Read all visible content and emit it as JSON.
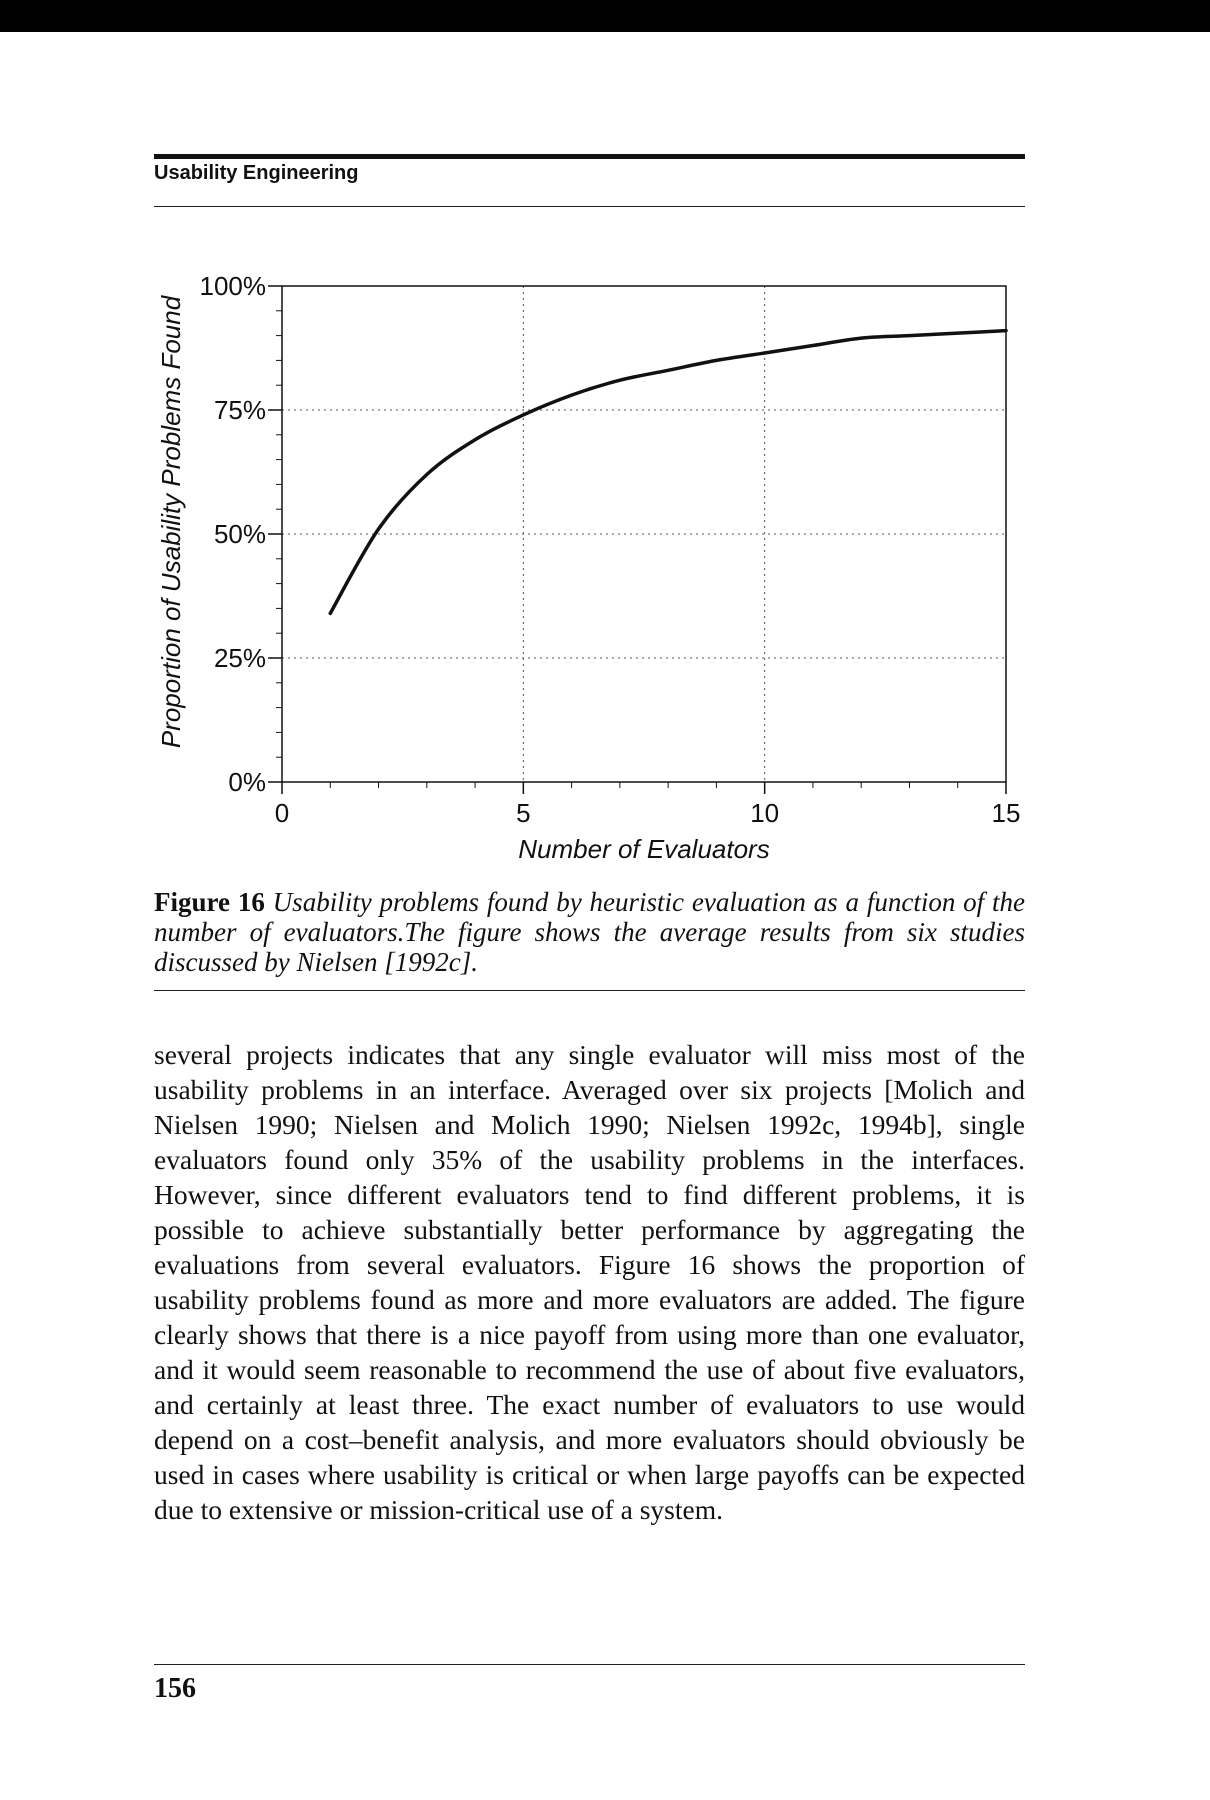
{
  "running_head": "Usability Engineering",
  "chart_data": {
    "type": "line",
    "xlabel": "Number of Evaluators",
    "ylabel": "Proportion of Usability Problems Found",
    "xlim": [
      0,
      15
    ],
    "ylim": [
      0,
      100
    ],
    "xticks": [
      "0",
      "5",
      "10",
      "15"
    ],
    "yticks": [
      "0%",
      "25%",
      "50%",
      "75%",
      "100%"
    ],
    "grid": "dotted",
    "series": [
      {
        "x": [
          1,
          2,
          3,
          4,
          5,
          6,
          7,
          8,
          9,
          10,
          11,
          12,
          13,
          14,
          15
        ],
        "values": [
          34,
          51,
          62,
          69,
          74,
          78,
          81,
          83,
          85,
          86.5,
          88,
          89.5,
          90,
          90.5,
          91
        ]
      }
    ]
  },
  "caption": {
    "label": "Figure 16",
    "text": "Usability problems found by heuristic evaluation as a function of the number of evaluators.The figure shows the average results from six studies discussed by Nielsen [1992c]."
  },
  "body_text": "several projects indicates that any single evaluator will miss most of the usability problems in an interface. Averaged over six projects [Molich and Nielsen 1990; Nielsen and Molich 1990; Nielsen 1992c, 1994b], single evaluators found only 35% of the usability problems in the interfaces. However, since different evaluators tend to find different problems, it is possible to achieve substantially better performance by aggregating the evaluations from several evaluators. Figure 16 shows the proportion of usability problems found as more and more evaluators are added. The figure clearly shows that there is a nice payoff from using more than one evaluator, and it would seem reasonable to recommend the use of about five evaluators, and certainly at least three. The exact number of evaluators to use would depend on a cost–benefit analysis, and more evaluators should obviously be used in cases where usability is critical or when large payoffs can be expected due to extensive or mission-critical use of a system.",
  "page_number": "156"
}
